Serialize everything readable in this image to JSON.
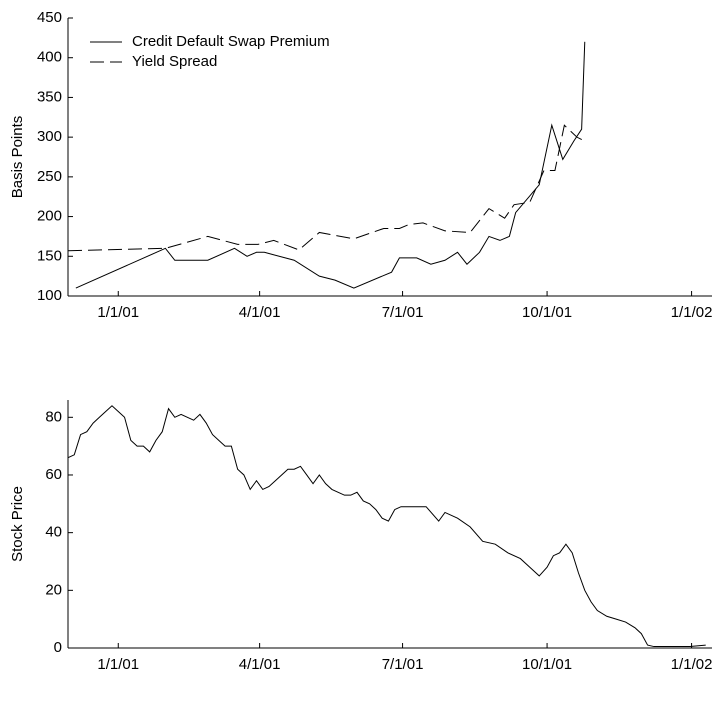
{
  "chart_data": [
    {
      "type": "line",
      "ylabel": "Basis Points",
      "legend": "upper left",
      "xlim": [
        "2000-11-30",
        "2002-01-14"
      ],
      "ylim": [
        100,
        450
      ],
      "yticks": [
        100,
        150,
        200,
        250,
        300,
        350,
        400,
        450
      ],
      "xticks": [
        {
          "value": "2001-01-01",
          "label": "1/1/01"
        },
        {
          "value": "2001-04-01",
          "label": "4/1/01"
        },
        {
          "value": "2001-07-01",
          "label": "7/1/01"
        },
        {
          "value": "2001-10-01",
          "label": "10/1/01"
        },
        {
          "value": "2002-01-01",
          "label": "1/1/02"
        }
      ],
      "series": [
        {
          "name": "Credit Default Swap Premium",
          "color": "#000000",
          "linestyle": "solid",
          "x": [
            "2000-12-05",
            "2001-01-31",
            "2001-02-06",
            "2001-02-27",
            "2001-03-16",
            "2001-03-24",
            "2001-03-30",
            "2001-04-04",
            "2001-04-23",
            "2001-05-09",
            "2001-05-19",
            "2001-05-31",
            "2001-06-24",
            "2001-06-29",
            "2001-07-10",
            "2001-07-19",
            "2001-07-28",
            "2001-08-05",
            "2001-08-11",
            "2001-08-19",
            "2001-08-25",
            "2001-09-01",
            "2001-09-07",
            "2001-09-11",
            "2001-09-26",
            "2001-10-04",
            "2001-10-11",
            "2001-10-18",
            "2001-10-23",
            "2001-10-25"
          ],
          "values": [
            110,
            160,
            145,
            145,
            160,
            150,
            155,
            155,
            145,
            125,
            120,
            110,
            130,
            148,
            148,
            140,
            145,
            155,
            140,
            155,
            175,
            170,
            175,
            205,
            240,
            315,
            272,
            295,
            310,
            420
          ]
        },
        {
          "name": "Yield Spread",
          "color": "#000000",
          "linestyle": "dashed",
          "x": [
            "2000-11-30",
            "2001-01-31",
            "2001-02-27",
            "2001-03-18",
            "2001-03-31",
            "2001-04-10",
            "2001-04-26",
            "2001-05-09",
            "2001-05-31",
            "2001-06-19",
            "2001-06-29",
            "2001-07-05",
            "2001-07-14",
            "2001-07-28",
            "2001-08-13",
            "2001-08-25",
            "2001-09-04",
            "2001-09-10",
            "2001-09-20",
            "2001-09-29",
            "2001-10-06",
            "2001-10-12",
            "2001-10-20",
            "2001-10-25"
          ],
          "values": [
            157,
            160,
            175,
            165,
            165,
            170,
            158,
            180,
            172,
            185,
            185,
            190,
            192,
            182,
            180,
            210,
            198,
            215,
            218,
            258,
            258,
            315,
            300,
            295
          ]
        }
      ]
    },
    {
      "type": "line",
      "ylabel": "Stock Price",
      "xlim": [
        "2000-11-30",
        "2002-01-14"
      ],
      "ylim": [
        0,
        86
      ],
      "yticks": [
        0,
        20,
        40,
        60,
        80
      ],
      "xticks": [
        {
          "value": "2001-01-01",
          "label": "1/1/01"
        },
        {
          "value": "2001-04-01",
          "label": "4/1/01"
        },
        {
          "value": "2001-07-01",
          "label": "7/1/01"
        },
        {
          "value": "2001-10-01",
          "label": "10/1/01"
        },
        {
          "value": "2002-01-01",
          "label": "1/1/02"
        }
      ],
      "series": [
        {
          "color": "#000000",
          "linestyle": "solid",
          "x": [
            "2000-11-30",
            "2000-12-04",
            "2000-12-08",
            "2000-12-12",
            "2000-12-16",
            "2000-12-20",
            "2000-12-24",
            "2000-12-28",
            "2001-01-01",
            "2001-01-05",
            "2001-01-09",
            "2001-01-13",
            "2001-01-17",
            "2001-01-21",
            "2001-01-25",
            "2001-01-29",
            "2001-02-02",
            "2001-02-06",
            "2001-02-10",
            "2001-02-14",
            "2001-02-18",
            "2001-02-22",
            "2001-02-26",
            "2001-03-02",
            "2001-03-06",
            "2001-03-10",
            "2001-03-14",
            "2001-03-18",
            "2001-03-22",
            "2001-03-26",
            "2001-03-30",
            "2001-04-03",
            "2001-04-07",
            "2001-04-11",
            "2001-04-15",
            "2001-04-19",
            "2001-04-23",
            "2001-04-27",
            "2001-05-01",
            "2001-05-05",
            "2001-05-09",
            "2001-05-13",
            "2001-05-17",
            "2001-05-21",
            "2001-05-25",
            "2001-05-29",
            "2001-06-02",
            "2001-06-06",
            "2001-06-10",
            "2001-06-14",
            "2001-06-18",
            "2001-06-22",
            "2001-06-26",
            "2001-06-30",
            "2001-07-08",
            "2001-07-16",
            "2001-07-24",
            "2001-07-28",
            "2001-08-05",
            "2001-08-13",
            "2001-08-21",
            "2001-08-29",
            "2001-09-06",
            "2001-09-14",
            "2001-09-20",
            "2001-09-26",
            "2001-10-01",
            "2001-10-05",
            "2001-10-09",
            "2001-10-13",
            "2001-10-17",
            "2001-10-21",
            "2001-10-25",
            "2001-10-29",
            "2001-11-02",
            "2001-11-08",
            "2001-11-14",
            "2001-11-20",
            "2001-11-26",
            "2001-11-30",
            "2001-12-04",
            "2001-12-08",
            "2001-12-15",
            "2001-12-22",
            "2001-12-31",
            "2002-01-10"
          ],
          "values": [
            66,
            67,
            74,
            75,
            78,
            80,
            82,
            84,
            82,
            80,
            72,
            70,
            70,
            68,
            72,
            75,
            83,
            80,
            81,
            80,
            79,
            81,
            78,
            74,
            72,
            70,
            70,
            62,
            60,
            55,
            58,
            55,
            56,
            58,
            60,
            62,
            62,
            63,
            60,
            57,
            60,
            57,
            55,
            54,
            53,
            53,
            54,
            51,
            50,
            48,
            45,
            44,
            48,
            49,
            49,
            49,
            44,
            47,
            45,
            42,
            37,
            36,
            33,
            31,
            28,
            25,
            28,
            32,
            33,
            36,
            33,
            26,
            20,
            16,
            13,
            11,
            10,
            9,
            7,
            5,
            1,
            0.5,
            0.5,
            0.5,
            0.5,
            1
          ]
        }
      ]
    }
  ]
}
